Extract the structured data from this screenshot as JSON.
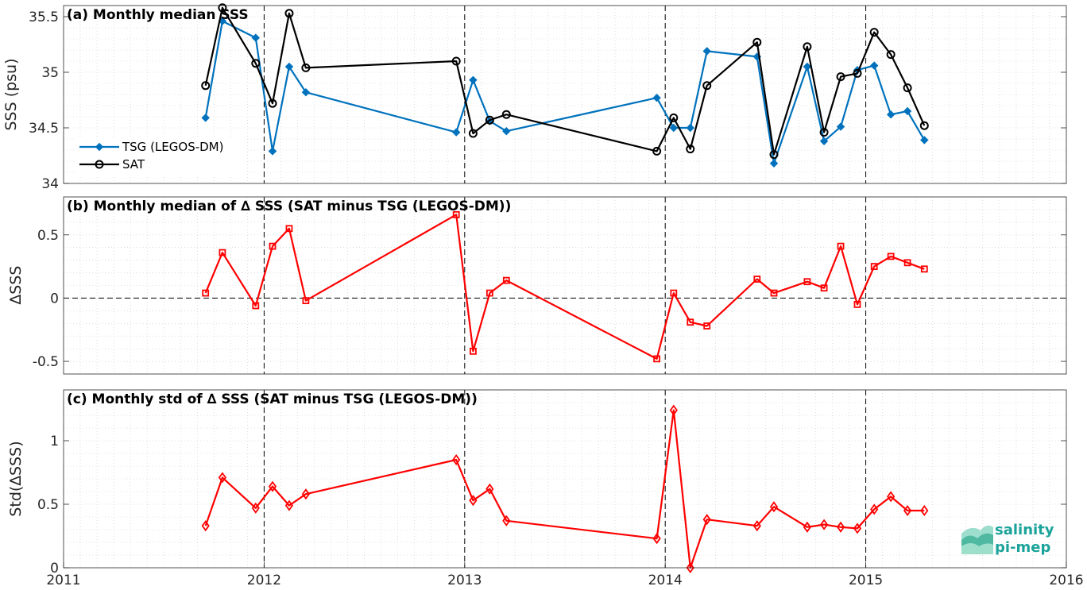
{
  "colors": {
    "tsg": "#0072BD",
    "sat": "#000000",
    "delta": "#ff0000",
    "grid": "#bdbdbd",
    "logo": "#1aa39a"
  },
  "logo": {
    "line1": "salinity",
    "line2": "pi-mep"
  },
  "chart_data": [
    {
      "type": "line",
      "title": "(a) Monthly median SSS",
      "ylabel": "SSS (psu)",
      "xlim": [
        2011,
        2016
      ],
      "ylim": [
        34,
        35.6
      ],
      "yticks": [
        34,
        34.5,
        35,
        35.5
      ],
      "ytick_labels": [
        "34",
        "34.5",
        "35",
        "35.5"
      ],
      "vlines": [
        2012,
        2013,
        2014,
        2015
      ],
      "legend": {
        "position": "lower-left"
      },
      "series": [
        {
          "name": "TSG (LEGOS-DM)",
          "marker": "diamond-filled",
          "color": "#0072BD",
          "x": [
            2011.708,
            2011.792,
            2011.958,
            2012.042,
            2012.125,
            2012.208,
            2012.958,
            2013.042,
            2013.125,
            2013.208,
            2013.958,
            2014.042,
            2014.125,
            2014.208,
            2014.458,
            2014.542,
            2014.708,
            2014.792,
            2014.875,
            2014.958,
            2015.042,
            2015.125,
            2015.208,
            2015.292
          ],
          "y": [
            34.59,
            35.46,
            35.31,
            34.29,
            35.05,
            34.82,
            34.46,
            34.93,
            34.56,
            34.47,
            34.77,
            34.5,
            34.5,
            35.19,
            35.14,
            34.18,
            35.05,
            34.38,
            34.51,
            35.02,
            35.06,
            34.62,
            34.65,
            34.39
          ]
        },
        {
          "name": "SAT",
          "marker": "circle-open",
          "color": "#000000",
          "x": [
            2011.708,
            2011.792,
            2011.958,
            2012.042,
            2012.125,
            2012.208,
            2012.958,
            2013.042,
            2013.125,
            2013.208,
            2013.958,
            2014.042,
            2014.125,
            2014.208,
            2014.458,
            2014.542,
            2014.708,
            2014.792,
            2014.875,
            2014.958,
            2015.042,
            2015.125,
            2015.208,
            2015.292
          ],
          "y": [
            34.88,
            35.58,
            35.08,
            34.72,
            35.53,
            35.04,
            35.1,
            34.45,
            34.57,
            34.62,
            34.29,
            34.59,
            34.31,
            34.88,
            35.27,
            34.26,
            35.23,
            34.46,
            34.96,
            34.99,
            35.36,
            35.16,
            34.86,
            34.52
          ]
        }
      ]
    },
    {
      "type": "line",
      "title": "(b) Monthly median of ∆ SSS (SAT minus TSG (LEGOS-DM))",
      "ylabel": "∆SSS",
      "xlim": [
        2011,
        2016
      ],
      "ylim": [
        -0.6,
        0.8
      ],
      "yticks": [
        -0.5,
        0,
        0.5
      ],
      "ytick_labels": [
        "-0.5",
        "0",
        "0.5"
      ],
      "vlines": [
        2012,
        2013,
        2014,
        2015
      ],
      "hline": 0,
      "series": [
        {
          "marker": "square-open",
          "color": "#ff0000",
          "x": [
            2011.708,
            2011.792,
            2011.958,
            2012.042,
            2012.125,
            2012.208,
            2012.958,
            2013.042,
            2013.125,
            2013.208,
            2013.958,
            2014.042,
            2014.125,
            2014.208,
            2014.458,
            2014.542,
            2014.708,
            2014.792,
            2014.875,
            2014.958,
            2015.042,
            2015.125,
            2015.208,
            2015.292
          ],
          "y": [
            0.04,
            0.36,
            -0.06,
            0.41,
            0.55,
            -0.02,
            0.66,
            -0.42,
            0.04,
            0.14,
            -0.48,
            0.04,
            -0.19,
            -0.22,
            0.15,
            0.04,
            0.13,
            0.08,
            0.41,
            -0.05,
            0.25,
            0.33,
            0.28,
            0.23
          ]
        }
      ]
    },
    {
      "type": "line",
      "title": "(c) Monthly std of ∆ SSS (SAT minus TSG (LEGOS-DM))",
      "ylabel": "Std(∆SSS)",
      "xlim": [
        2011,
        2016
      ],
      "ylim": [
        0,
        1.4
      ],
      "yticks": [
        0,
        0.5,
        1
      ],
      "ytick_labels": [
        "0",
        "0.5",
        "1"
      ],
      "xticks": [
        2011,
        2012,
        2013,
        2014,
        2015,
        2016
      ],
      "xtick_labels": [
        "2011",
        "2012",
        "2013",
        "2014",
        "2015",
        "2016"
      ],
      "vlines": [
        2012,
        2013,
        2014,
        2015
      ],
      "series": [
        {
          "marker": "diamond-open",
          "color": "#ff0000",
          "x": [
            2011.708,
            2011.792,
            2011.958,
            2012.042,
            2012.125,
            2012.208,
            2012.958,
            2013.042,
            2013.125,
            2013.208,
            2013.958,
            2014.042,
            2014.125,
            2014.208,
            2014.458,
            2014.542,
            2014.708,
            2014.792,
            2014.875,
            2014.958,
            2015.042,
            2015.125,
            2015.208,
            2015.292
          ],
          "y": [
            0.33,
            0.71,
            0.47,
            0.64,
            0.49,
            0.58,
            0.85,
            0.53,
            0.62,
            0.37,
            0.23,
            1.24,
            0.0,
            0.38,
            0.33,
            0.48,
            0.32,
            0.34,
            0.32,
            0.31,
            0.46,
            0.56,
            0.45,
            0.45
          ]
        }
      ]
    }
  ]
}
